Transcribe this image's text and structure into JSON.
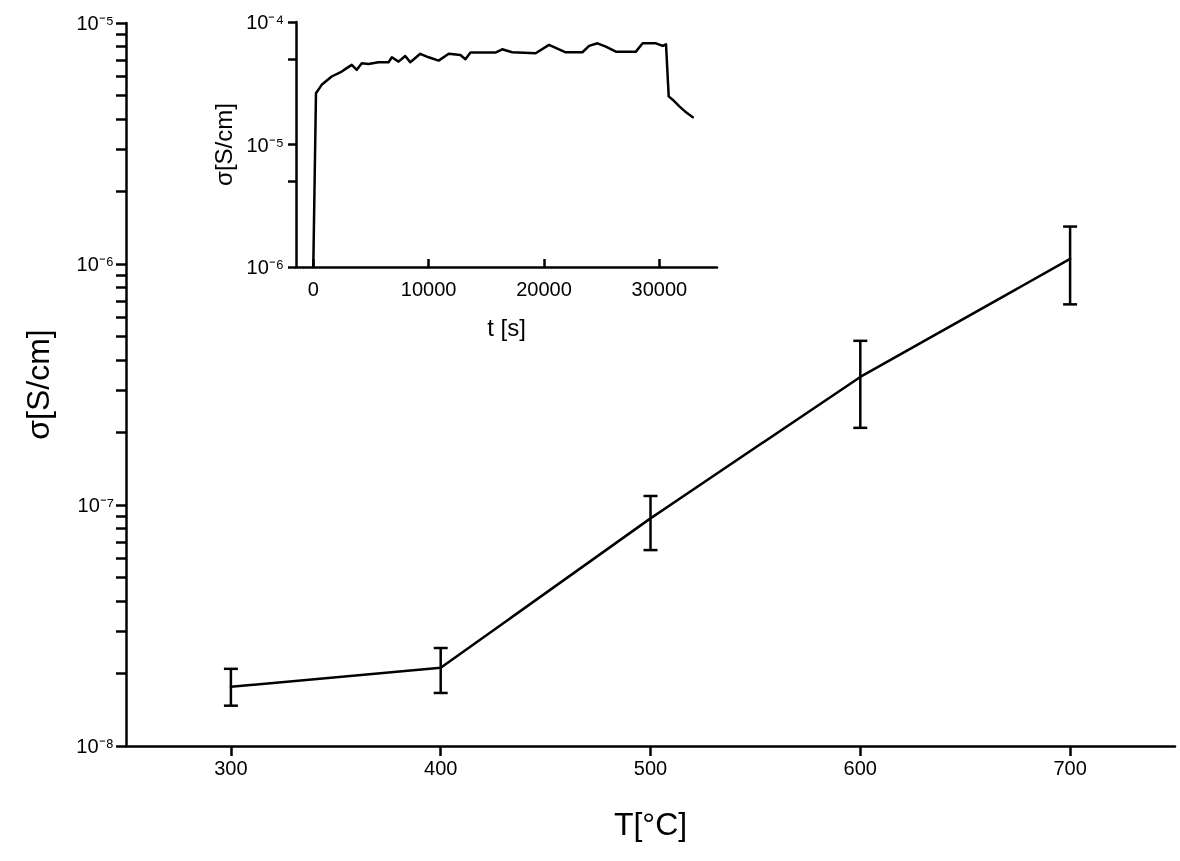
{
  "chart_data": [
    {
      "type": "line",
      "xlabel": "T[°C]",
      "ylabel": "σ[S/cm]",
      "x": [
        300,
        400,
        500,
        600,
        700
      ],
      "values": [
        1.76e-08,
        2.11e-08,
        8.8e-08,
        3.4e-07,
        1.05e-06
      ],
      "errors": [
        [
          1.47e-08,
          2.09e-08
        ],
        [
          1.66e-08,
          2.55e-08
        ],
        [
          6.5e-08,
          1.09e-07
        ],
        [
          2.09e-07,
          4.8e-07
        ],
        [
          6.8e-07,
          1.43e-06
        ]
      ],
      "color": "#000000",
      "marker": "none",
      "log": "y",
      "xlim": [
        250,
        750
      ],
      "xticks": [
        300,
        400,
        500,
        600,
        700
      ],
      "ylim": [
        1e-08,
        1e-05
      ],
      "yticks": [
        {
          "value": 1e-08,
          "label": "10⁻⁸"
        },
        {
          "value": 2e-08,
          "label": null
        },
        {
          "value": 3e-08,
          "label": null
        },
        {
          "value": 4e-08,
          "label": null
        },
        {
          "value": 5e-08,
          "label": null
        },
        {
          "value": 6e-08,
          "label": null
        },
        {
          "value": 7e-08,
          "label": null
        },
        {
          "value": 8e-08,
          "label": null
        },
        {
          "value": 9e-08,
          "label": null
        },
        {
          "value": 1e-07,
          "label": "10⁻⁷"
        },
        {
          "value": 2e-07,
          "label": null
        },
        {
          "value": 3e-07,
          "label": null
        },
        {
          "value": 4e-07,
          "label": null
        },
        {
          "value": 5e-07,
          "label": null
        },
        {
          "value": 6e-07,
          "label": null
        },
        {
          "value": 7e-07,
          "label": null
        },
        {
          "value": 8e-07,
          "label": null
        },
        {
          "value": 9e-07,
          "label": null
        },
        {
          "value": 1e-06,
          "label": "10⁻⁶"
        },
        {
          "value": 2e-06,
          "label": null
        },
        {
          "value": 3e-06,
          "label": null
        },
        {
          "value": 4e-06,
          "label": null
        },
        {
          "value": 5e-06,
          "label": null
        },
        {
          "value": 6e-06,
          "label": null
        },
        {
          "value": 7e-06,
          "label": null
        },
        {
          "value": 8e-06,
          "label": null
        },
        {
          "value": 9e-06,
          "label": null
        },
        {
          "value": 1e-05,
          "label": "10⁻⁵"
        }
      ]
    },
    {
      "type": "line",
      "xlabel": "t [s]",
      "ylabel": "σ[S/cm]",
      "x": [
        0,
        232,
        725,
        1594,
        2464,
        2899,
        3333,
        3768,
        4203,
        4783,
        5652,
        6522,
        6812,
        7391,
        7971,
        8406,
        9275,
        10000,
        10870,
        11739,
        12754,
        13188,
        13623,
        15797,
        16377,
        17246,
        19275,
        20435,
        21884,
        23333,
        23913,
        24638,
        25362,
        26232,
        27971,
        28551,
        29710,
        30290,
        30580,
        30812,
        31159,
        31739,
        32319,
        32899
      ],
      "values": [
        1e-06,
        2.62e-05,
        3.07e-05,
        3.59e-05,
        3.94e-05,
        4.2e-05,
        4.47e-05,
        4.07e-05,
        4.6e-05,
        4.55e-05,
        4.7e-05,
        4.7e-05,
        5.15e-05,
        4.75e-05,
        5.28e-05,
        4.7e-05,
        5.5e-05,
        5.15e-05,
        4.84e-05,
        5.5e-05,
        5.38e-05,
        4.97e-05,
        5.63e-05,
        5.63e-05,
        5.99e-05,
        5.66e-05,
        5.56e-05,
        6.5e-05,
        5.66e-05,
        5.66e-05,
        6.38e-05,
        6.7e-05,
        6.3e-05,
        5.73e-05,
        5.73e-05,
        6.7e-05,
        6.7e-05,
        6.38e-05,
        6.58e-05,
        2.47e-05,
        2.32e-05,
        2.05e-05,
        1.83e-05,
        1.67e-05
      ],
      "color": "#000000",
      "marker": "none",
      "log": "y",
      "xlim": [
        -1500,
        35000
      ],
      "xticks": [
        0,
        10000,
        20000,
        30000
      ],
      "ylim": [
        1e-06,
        0.0001
      ],
      "yticks": [
        {
          "value": 1e-06,
          "label": "10⁻⁶"
        },
        {
          "value": 5e-06,
          "label": null
        },
        {
          "value": 1e-05,
          "label": "10⁻⁵"
        },
        {
          "value": 5e-05,
          "label": null
        },
        {
          "value": 0.0001,
          "label": "10⁻⁴"
        }
      ]
    }
  ]
}
